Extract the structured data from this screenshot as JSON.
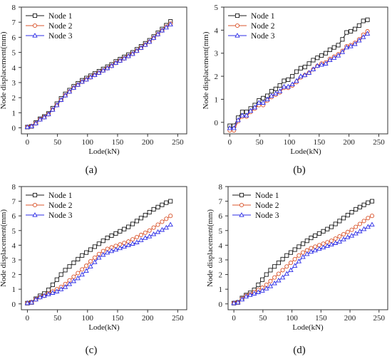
{
  "chart_data": [
    {
      "type": "line",
      "panel_label": "(a)",
      "xlabel": "Lode(kN)",
      "ylabel": "Node displacement(mm)",
      "xlim": [
        -10,
        265
      ],
      "ylim": [
        -0.4,
        8
      ],
      "xticks": [
        0,
        50,
        100,
        150,
        200,
        250
      ],
      "yticks": [
        0,
        1,
        2,
        3,
        4,
        5,
        6,
        7,
        8
      ],
      "legend_position": "top-left",
      "grid": false,
      "x": [
        0,
        7,
        14,
        21,
        28,
        35,
        42,
        49,
        56,
        63,
        70,
        77,
        84,
        91,
        98,
        105,
        112,
        119,
        126,
        133,
        140,
        147,
        154,
        161,
        168,
        175,
        182,
        189,
        196,
        203,
        210,
        217,
        224,
        231,
        238
      ],
      "series": [
        {
          "name": "Node 1",
          "color": "#1a1a1a",
          "marker": "square",
          "values": [
            0.05,
            0.1,
            0.35,
            0.6,
            0.75,
            0.95,
            1.3,
            1.6,
            1.95,
            2.25,
            2.5,
            2.75,
            2.95,
            3.15,
            3.3,
            3.45,
            3.6,
            3.75,
            3.9,
            4.05,
            4.2,
            4.4,
            4.55,
            4.7,
            4.85,
            5.0,
            5.2,
            5.4,
            5.6,
            5.8,
            6.05,
            6.3,
            6.55,
            6.8,
            7.05
          ]
        },
        {
          "name": "Node 2",
          "color": "#d9542c",
          "marker": "circle",
          "values": [
            0.05,
            0.1,
            0.3,
            0.55,
            0.7,
            0.9,
            1.2,
            1.5,
            1.85,
            2.15,
            2.4,
            2.65,
            2.85,
            3.05,
            3.2,
            3.35,
            3.5,
            3.65,
            3.8,
            3.95,
            4.1,
            4.3,
            4.45,
            4.6,
            4.75,
            4.9,
            5.1,
            5.3,
            5.5,
            5.7,
            5.95,
            6.2,
            6.45,
            6.7,
            6.9
          ]
        },
        {
          "name": "Node 3",
          "color": "#2e2ee6",
          "marker": "triangle",
          "values": [
            0.05,
            0.1,
            0.3,
            0.55,
            0.7,
            0.9,
            1.2,
            1.5,
            1.85,
            2.15,
            2.4,
            2.65,
            2.85,
            3.05,
            3.2,
            3.35,
            3.5,
            3.65,
            3.8,
            3.95,
            4.1,
            4.3,
            4.45,
            4.6,
            4.75,
            4.9,
            5.1,
            5.3,
            5.5,
            5.7,
            5.95,
            6.2,
            6.45,
            6.65,
            6.85
          ]
        }
      ]
    },
    {
      "type": "line",
      "panel_label": "(b)",
      "xlabel": "Lode(kN)",
      "ylabel": "Node displacement(mm)",
      "xlim": [
        -10,
        265
      ],
      "ylim": [
        -0.5,
        5
      ],
      "xticks": [
        0,
        50,
        100,
        150,
        200,
        250
      ],
      "yticks": [
        0,
        1,
        2,
        3,
        4,
        5
      ],
      "legend_position": "top-left",
      "grid": false,
      "x": [
        0,
        7,
        14,
        21,
        28,
        35,
        42,
        49,
        56,
        63,
        70,
        77,
        84,
        91,
        98,
        105,
        112,
        119,
        126,
        133,
        140,
        147,
        154,
        161,
        168,
        175,
        182,
        189,
        196,
        203,
        210,
        217,
        224,
        231
      ],
      "series": [
        {
          "name": "Node 1",
          "color": "#1a1a1a",
          "marker": "square",
          "values": [
            -0.15,
            -0.15,
            0.2,
            0.45,
            0.45,
            0.6,
            0.75,
            0.95,
            1.05,
            1.15,
            1.35,
            1.45,
            1.6,
            1.8,
            1.85,
            2.0,
            2.2,
            2.35,
            2.4,
            2.55,
            2.7,
            2.8,
            2.9,
            3.0,
            3.15,
            3.25,
            3.35,
            3.6,
            3.9,
            3.95,
            4.05,
            4.2,
            4.4,
            4.45
          ]
        },
        {
          "name": "Node 2",
          "color": "#d9542c",
          "marker": "circle",
          "values": [
            -0.35,
            -0.35,
            0.05,
            0.25,
            0.25,
            0.45,
            0.6,
            0.75,
            0.75,
            0.95,
            1.1,
            1.2,
            1.3,
            1.5,
            1.5,
            1.6,
            1.75,
            1.95,
            2.05,
            2.15,
            2.3,
            2.45,
            2.55,
            2.6,
            2.75,
            2.85,
            2.95,
            3.1,
            3.3,
            3.35,
            3.45,
            3.6,
            3.8,
            3.95
          ]
        },
        {
          "name": "Node 3",
          "color": "#2e2ee6",
          "marker": "triangle",
          "values": [
            -0.25,
            -0.25,
            0.1,
            0.3,
            0.3,
            0.5,
            0.65,
            0.85,
            0.85,
            1.0,
            1.15,
            1.25,
            1.35,
            1.55,
            1.55,
            1.65,
            1.8,
            2.0,
            2.05,
            2.15,
            2.3,
            2.45,
            2.5,
            2.55,
            2.7,
            2.8,
            2.9,
            3.05,
            3.25,
            3.3,
            3.4,
            3.55,
            3.7,
            3.85
          ]
        }
      ]
    },
    {
      "type": "line",
      "panel_label": "(c)",
      "xlabel": "Lode(kN)",
      "ylabel": "Node displacement(mm)",
      "xlim": [
        -10,
        265
      ],
      "ylim": [
        -0.4,
        8
      ],
      "xticks": [
        0,
        50,
        100,
        150,
        200,
        250
      ],
      "yticks": [
        0,
        1,
        2,
        3,
        4,
        5,
        6,
        7,
        8
      ],
      "legend_position": "top-left",
      "grid": false,
      "x": [
        0,
        7,
        14,
        21,
        28,
        35,
        42,
        49,
        56,
        63,
        70,
        77,
        84,
        91,
        98,
        105,
        112,
        119,
        126,
        133,
        140,
        147,
        154,
        161,
        168,
        175,
        182,
        189,
        196,
        203,
        210,
        217,
        224,
        231,
        238
      ],
      "series": [
        {
          "name": "Node 1",
          "color": "#1a1a1a",
          "marker": "square",
          "values": [
            0.05,
            0.1,
            0.35,
            0.55,
            0.7,
            0.95,
            1.3,
            1.65,
            2.0,
            2.3,
            2.55,
            2.8,
            3.05,
            3.3,
            3.5,
            3.7,
            3.9,
            4.1,
            4.3,
            4.5,
            4.65,
            4.8,
            4.95,
            5.1,
            5.25,
            5.45,
            5.65,
            5.85,
            6.05,
            6.25,
            6.45,
            6.6,
            6.75,
            6.9,
            7.0
          ]
        },
        {
          "name": "Node 2",
          "color": "#d9542c",
          "marker": "circle",
          "values": [
            0.05,
            0.1,
            0.3,
            0.45,
            0.55,
            0.7,
            0.85,
            1.0,
            1.15,
            1.35,
            1.6,
            1.85,
            2.1,
            2.35,
            2.6,
            2.9,
            3.15,
            3.4,
            3.6,
            3.75,
            3.85,
            3.95,
            4.05,
            4.15,
            4.25,
            4.4,
            4.55,
            4.7,
            4.85,
            5.0,
            5.2,
            5.4,
            5.6,
            5.8,
            6.0
          ]
        },
        {
          "name": "Node 3",
          "color": "#2e2ee6",
          "marker": "triangle",
          "values": [
            0.05,
            0.1,
            0.3,
            0.45,
            0.55,
            0.65,
            0.75,
            0.85,
            1.0,
            1.15,
            1.35,
            1.55,
            1.75,
            2.0,
            2.25,
            2.55,
            2.85,
            3.15,
            3.35,
            3.5,
            3.6,
            3.7,
            3.8,
            3.9,
            4.0,
            4.1,
            4.2,
            4.35,
            4.5,
            4.6,
            4.75,
            4.9,
            5.05,
            5.2,
            5.4
          ]
        }
      ]
    },
    {
      "type": "line",
      "panel_label": "(d)",
      "xlabel": "Lode(kN)",
      "ylabel": "Node displacement(mm)",
      "xlim": [
        -10,
        265
      ],
      "ylim": [
        -0.4,
        8
      ],
      "xticks": [
        0,
        50,
        100,
        150,
        200,
        250
      ],
      "yticks": [
        0,
        1,
        2,
        3,
        4,
        5,
        6,
        7,
        8
      ],
      "legend_position": "top-left",
      "grid": false,
      "x": [
        0,
        7,
        14,
        21,
        28,
        35,
        42,
        49,
        56,
        63,
        70,
        77,
        84,
        91,
        98,
        105,
        112,
        119,
        126,
        133,
        140,
        147,
        154,
        161,
        168,
        175,
        182,
        189,
        196,
        203,
        210,
        217,
        224,
        231,
        238
      ],
      "series": [
        {
          "name": "Node 1",
          "color": "#1a1a1a",
          "marker": "square",
          "values": [
            0.05,
            0.1,
            0.4,
            0.6,
            0.75,
            0.95,
            1.3,
            1.65,
            2.0,
            2.3,
            2.55,
            2.8,
            3.05,
            3.3,
            3.5,
            3.7,
            3.9,
            4.1,
            4.3,
            4.5,
            4.65,
            4.8,
            4.95,
            5.1,
            5.25,
            5.45,
            5.65,
            5.85,
            6.05,
            6.25,
            6.45,
            6.6,
            6.75,
            6.9,
            7.0
          ]
        },
        {
          "name": "Node 2",
          "color": "#d9542c",
          "marker": "circle",
          "values": [
            0.05,
            0.1,
            0.35,
            0.55,
            0.65,
            0.8,
            0.95,
            1.1,
            1.3,
            1.55,
            1.8,
            2.05,
            2.3,
            2.55,
            2.8,
            3.05,
            3.3,
            3.5,
            3.65,
            3.8,
            3.9,
            4.0,
            4.1,
            4.2,
            4.3,
            4.45,
            4.6,
            4.75,
            4.9,
            5.05,
            5.25,
            5.45,
            5.65,
            5.85,
            6.0
          ]
        },
        {
          "name": "Node 3",
          "color": "#2e2ee6",
          "marker": "triangle",
          "values": [
            0.05,
            0.1,
            0.3,
            0.5,
            0.6,
            0.7,
            0.8,
            0.9,
            1.05,
            1.2,
            1.4,
            1.6,
            1.8,
            2.05,
            2.3,
            2.6,
            2.9,
            3.2,
            3.4,
            3.55,
            3.65,
            3.75,
            3.85,
            3.95,
            4.05,
            4.15,
            4.25,
            4.4,
            4.55,
            4.65,
            4.8,
            4.95,
            5.1,
            5.25,
            5.4
          ]
        }
      ]
    }
  ]
}
